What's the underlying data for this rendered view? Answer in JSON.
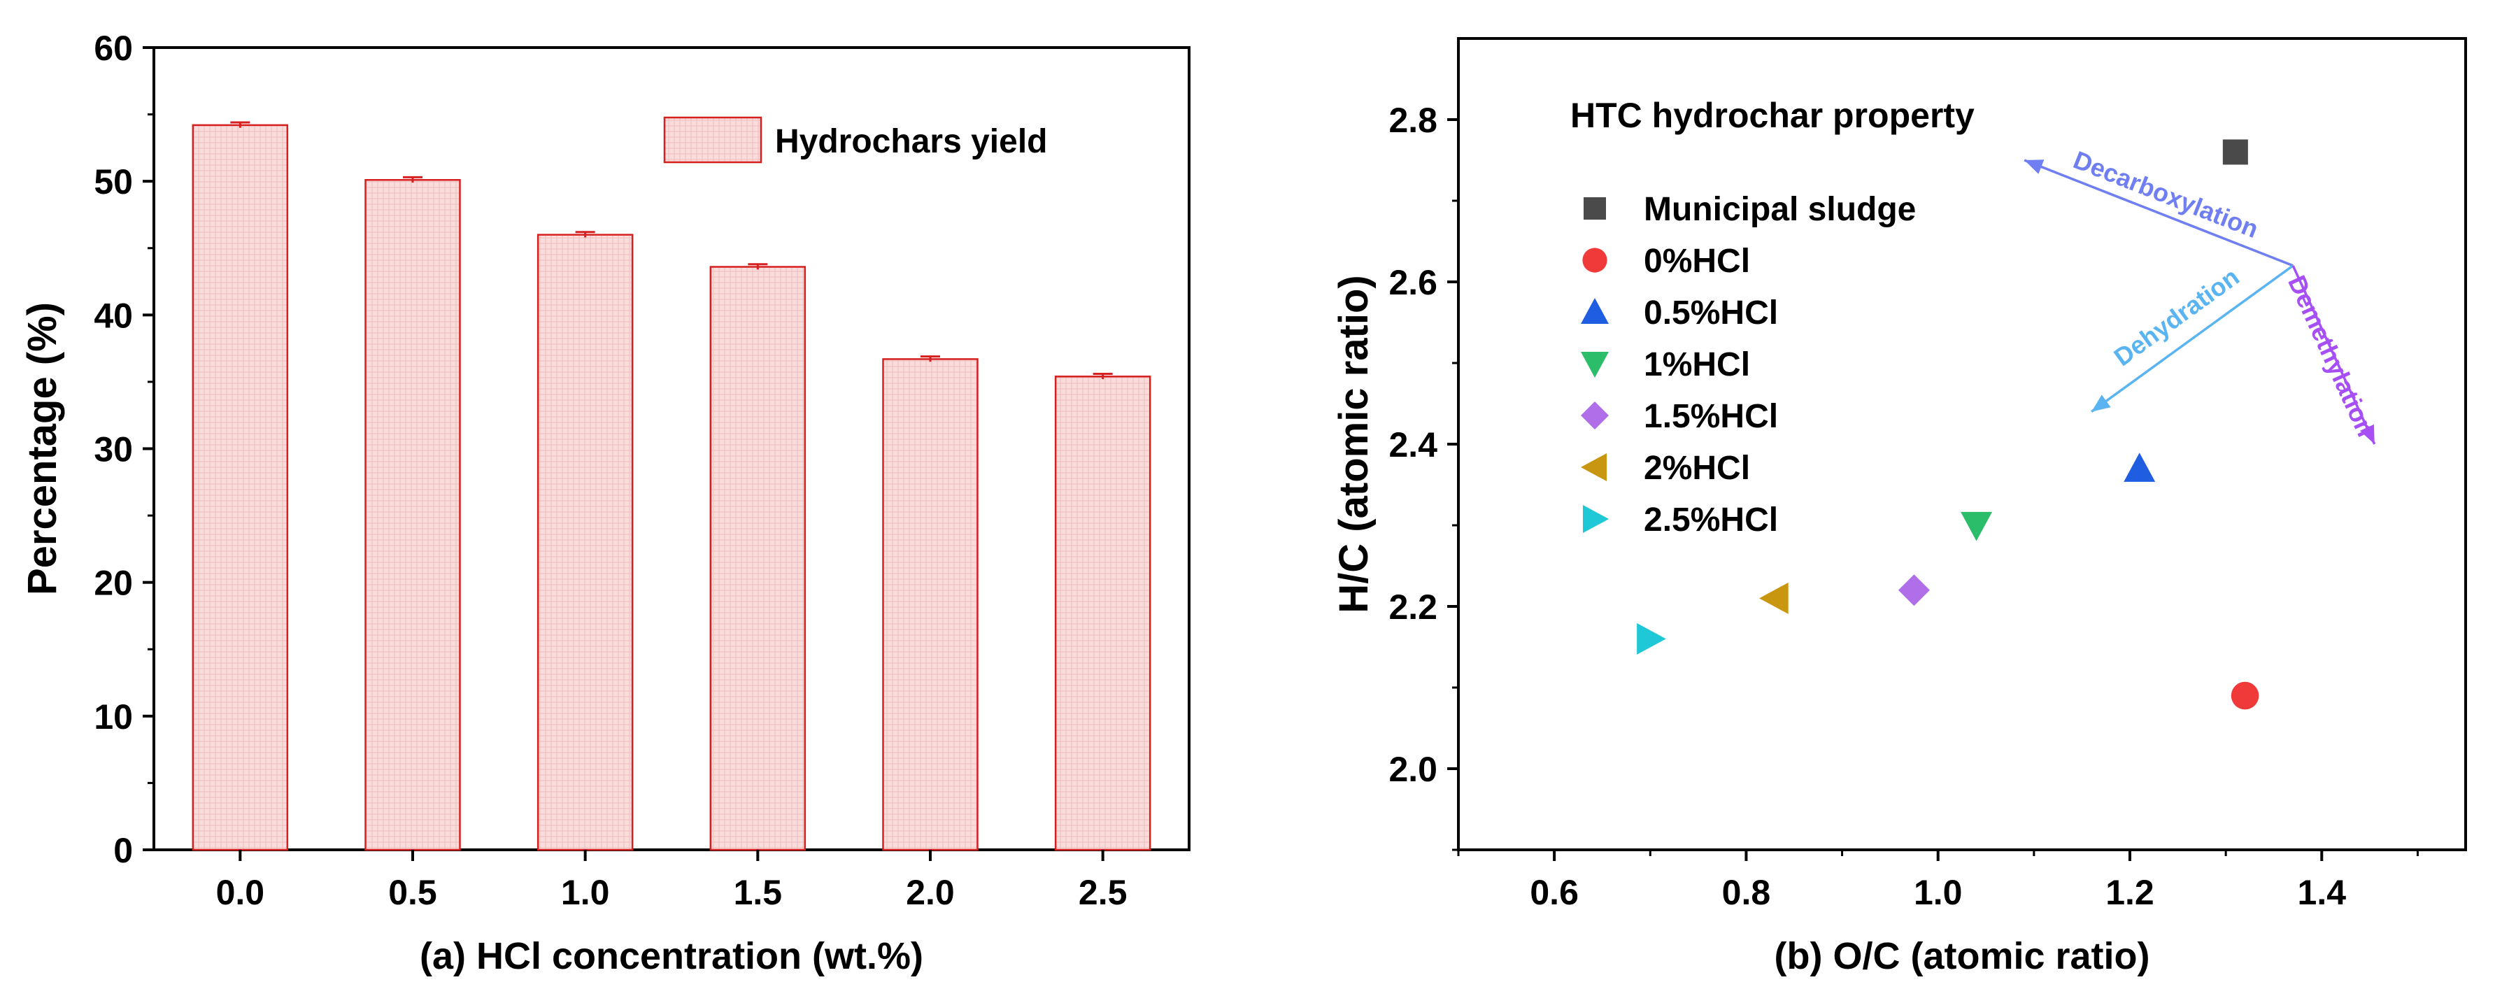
{
  "chart_data": [
    {
      "type": "bar",
      "xlabel": "(a) HCl concentration (wt.%)",
      "ylabel": "Percentage (%)",
      "categories": [
        "0.0",
        "0.5",
        "1.0",
        "1.5",
        "2.0",
        "2.5"
      ],
      "series": [
        {
          "name": "Hydrochars yield",
          "values": [
            54.2,
            50.1,
            46.0,
            43.6,
            36.7,
            35.4
          ]
        }
      ],
      "error": [
        0.2,
        0.2,
        0.2,
        0.2,
        0.2,
        0.2
      ],
      "ylim": [
        0,
        60
      ],
      "yticks": [
        "0",
        "10",
        "20",
        "30",
        "40",
        "50",
        "60"
      ],
      "legend_position": "top-right",
      "grid": false,
      "colors": {
        "fill": "#f9dcdc",
        "edge": "#d62020",
        "error": "#d62020"
      }
    },
    {
      "type": "scatter",
      "xlabel": "(b) O/C (atomic ratio)",
      "ylabel": "H/C (atomic ratio)",
      "legend_title": "HTC hydrochar property",
      "legend_position": "top-left",
      "xlim": [
        0.5,
        1.55
      ],
      "ylim": [
        1.9,
        2.9
      ],
      "xticks": [
        "0.6",
        "0.8",
        "1.0",
        "1.2",
        "1.4"
      ],
      "yticks": [
        "2.0",
        "2.2",
        "2.4",
        "2.6",
        "2.8"
      ],
      "grid": false,
      "series": [
        {
          "name": "Municipal sludge",
          "marker": "square",
          "color": "#4a4a4a",
          "x": [
            1.31
          ],
          "y": [
            2.76
          ]
        },
        {
          "name": "0%HCl",
          "marker": "circle",
          "color": "#f03a3a",
          "x": [
            1.32
          ],
          "y": [
            2.09
          ]
        },
        {
          "name": "0.5%HCl",
          "marker": "triangle-up",
          "color": "#1f5ee0",
          "x": [
            1.21
          ],
          "y": [
            2.37
          ]
        },
        {
          "name": "1%HCl",
          "marker": "triangle-down",
          "color": "#2bbd6a",
          "x": [
            1.04
          ],
          "y": [
            2.3
          ]
        },
        {
          "name": "1.5%HCl",
          "marker": "diamond",
          "color": "#b06ee8",
          "x": [
            0.975
          ],
          "y": [
            2.22
          ]
        },
        {
          "name": "2%HCl",
          "marker": "triangle-left",
          "color": "#c9960f",
          "x": [
            0.83
          ],
          "y": [
            2.21
          ]
        },
        {
          "name": "2.5%HCl",
          "marker": "triangle-right",
          "color": "#1ec8d6",
          "x": [
            0.7
          ],
          "y": [
            2.16
          ]
        }
      ],
      "annotations": [
        {
          "label": "Decarboxylation",
          "color": "#6f7ff2",
          "from": [
            1.37,
            2.62
          ],
          "to": [
            1.09,
            2.75
          ]
        },
        {
          "label": "Dehydration",
          "color": "#5ab4f2",
          "from": [
            1.37,
            2.62
          ],
          "to": [
            1.16,
            2.44
          ]
        },
        {
          "label": "Demethylation",
          "color": "#a64ff5",
          "from": [
            1.37,
            2.62
          ],
          "to": [
            1.455,
            2.4
          ]
        }
      ]
    }
  ]
}
